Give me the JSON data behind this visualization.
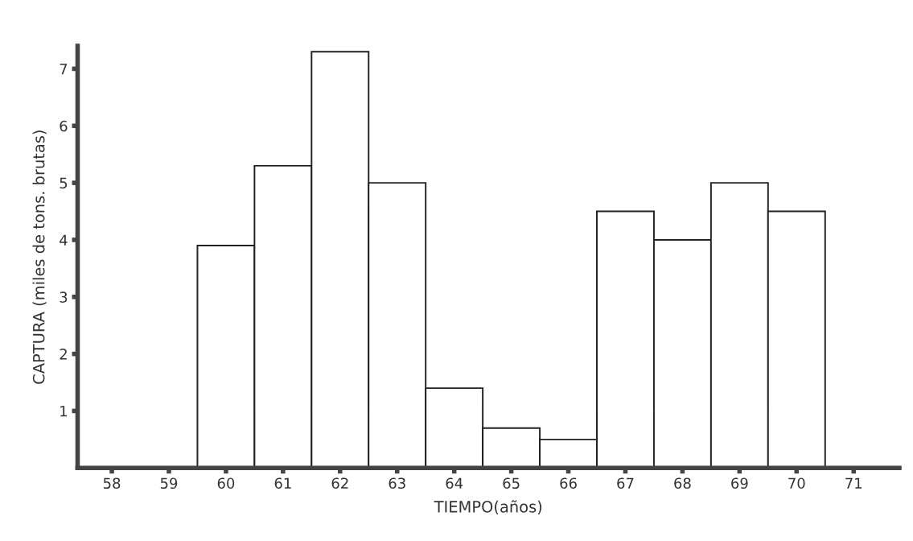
{
  "chart_data": {
    "type": "bar",
    "xlabel": "TIEMPO(años)",
    "ylabel": "CAPTURA (miles de tons. brutas)",
    "categories": [
      "58",
      "59",
      "60",
      "61",
      "62",
      "63",
      "64",
      "65",
      "66",
      "67",
      "68",
      "69",
      "70",
      "71"
    ],
    "values": [
      null,
      null,
      3.9,
      5.3,
      7.3,
      5.0,
      1.4,
      0.7,
      0.5,
      4.5,
      4.0,
      5.0,
      4.5,
      null
    ],
    "color": "#ffffff",
    "ylim": [
      0,
      7.4
    ],
    "yticks": [
      1,
      2,
      3,
      4,
      5,
      6,
      7
    ],
    "grid": false
  }
}
